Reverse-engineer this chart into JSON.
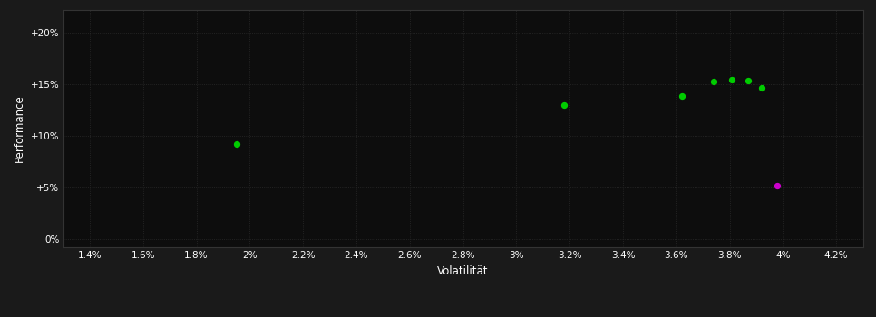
{
  "background_color": "#1a1a1a",
  "plot_bg_color": "#0d0d0d",
  "grid_color": "#2a2a2a",
  "text_color": "#ffffff",
  "xlabel": "Volatilität",
  "ylabel": "Performance",
  "xlim": [
    0.013,
    0.043
  ],
  "ylim": [
    -0.008,
    0.222
  ],
  "xticks": [
    0.014,
    0.016,
    0.018,
    0.02,
    0.022,
    0.024,
    0.026,
    0.028,
    0.03,
    0.032,
    0.034,
    0.036,
    0.038,
    0.04,
    0.042
  ],
  "xtick_labels": [
    "1.4%",
    "1.6%",
    "1.8%",
    "2%",
    "2.2%",
    "2.4%",
    "2.6%",
    "2.8%",
    "3%",
    "3.2%",
    "3.4%",
    "3.6%",
    "3.8%",
    "4%",
    "4.2%"
  ],
  "yticks": [
    0.0,
    0.05,
    0.1,
    0.15,
    0.2
  ],
  "ytick_labels": [
    "0%",
    "+5%",
    "+10%",
    "+15%",
    "+20%"
  ],
  "green_points": [
    [
      0.0195,
      0.092
    ],
    [
      0.0318,
      0.13
    ],
    [
      0.0362,
      0.138
    ],
    [
      0.0374,
      0.152
    ],
    [
      0.0381,
      0.154
    ],
    [
      0.0387,
      0.153
    ],
    [
      0.0392,
      0.146
    ]
  ],
  "magenta_points": [
    [
      0.0398,
      0.052
    ]
  ],
  "green_color": "#00cc00",
  "magenta_color": "#cc00cc",
  "dot_size": 18
}
